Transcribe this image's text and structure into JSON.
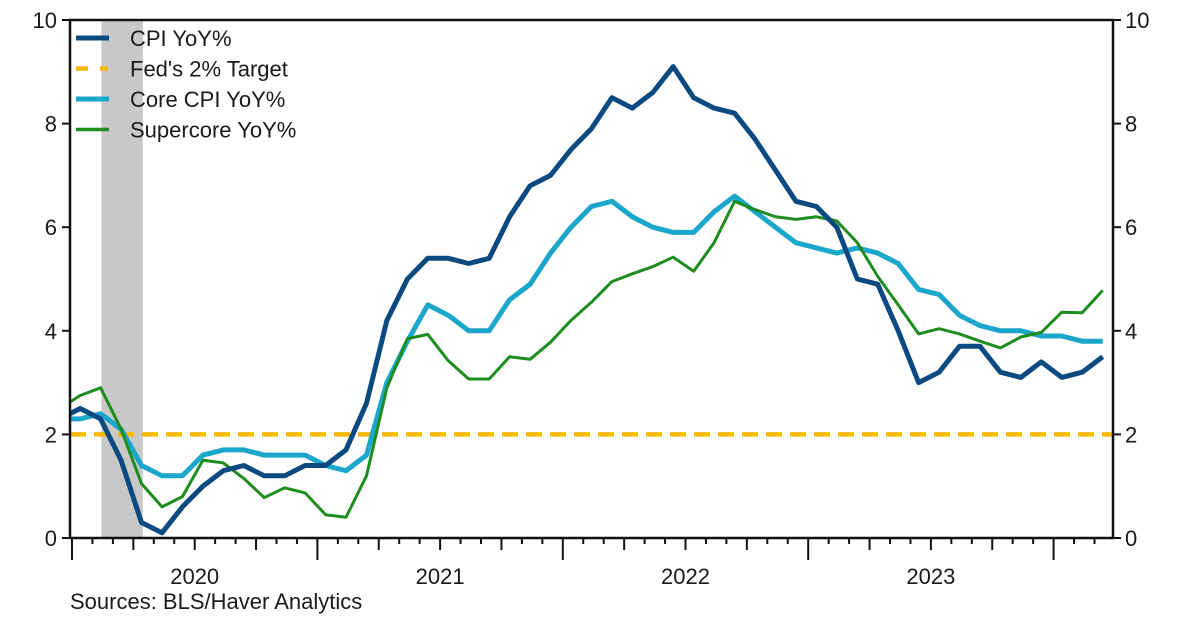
{
  "chart_data": {
    "type": "line",
    "title": "",
    "xlabel": "",
    "ylabel": "",
    "ylim": [
      0,
      10
    ],
    "yticks": [
      0,
      2,
      4,
      6,
      8,
      10
    ],
    "y_axes": "left and right (mirrored)",
    "x_start": "2019-12",
    "x_end": "2024-03",
    "frequency": "monthly",
    "xtick_labels": [
      "2020",
      "2021",
      "2022",
      "2023"
    ],
    "legend_position": "top-left",
    "grid": false,
    "shaded_regions": [
      {
        "name": "Recession",
        "start": "2020-02",
        "end": "2020-04",
        "color": "#c8c8c8"
      }
    ],
    "x": [
      "2019-12",
      "2020-01",
      "2020-02",
      "2020-03",
      "2020-04",
      "2020-05",
      "2020-06",
      "2020-07",
      "2020-08",
      "2020-09",
      "2020-10",
      "2020-11",
      "2020-12",
      "2021-01",
      "2021-02",
      "2021-03",
      "2021-04",
      "2021-05",
      "2021-06",
      "2021-07",
      "2021-08",
      "2021-09",
      "2021-10",
      "2021-11",
      "2021-12",
      "2022-01",
      "2022-02",
      "2022-03",
      "2022-04",
      "2022-05",
      "2022-06",
      "2022-07",
      "2022-08",
      "2022-09",
      "2022-10",
      "2022-11",
      "2022-12",
      "2023-01",
      "2023-02",
      "2023-03",
      "2023-04",
      "2023-05",
      "2023-06",
      "2023-07",
      "2023-08",
      "2023-09",
      "2023-10",
      "2023-11",
      "2023-12",
      "2024-01",
      "2024-02",
      "2024-03"
    ],
    "series": [
      {
        "name": "CPI YoY%",
        "color": "#0b4a80",
        "style": "solid",
        "values": [
          2.3,
          2.5,
          2.3,
          1.5,
          0.3,
          0.1,
          0.6,
          1.0,
          1.3,
          1.4,
          1.2,
          1.2,
          1.4,
          1.4,
          1.7,
          2.6,
          4.2,
          5.0,
          5.4,
          5.4,
          5.3,
          5.4,
          6.2,
          6.8,
          7.0,
          7.5,
          7.9,
          8.5,
          8.3,
          8.6,
          9.1,
          8.5,
          8.3,
          8.2,
          7.7,
          7.1,
          6.5,
          6.4,
          6.0,
          5.0,
          4.9,
          4.0,
          3.0,
          3.2,
          3.7,
          3.7,
          3.2,
          3.1,
          3.4,
          3.1,
          3.2,
          3.5
        ]
      },
      {
        "name": "Fed's 2% Target",
        "color": "#f7b900",
        "style": "dashed",
        "values": [
          2,
          2,
          2,
          2,
          2,
          2,
          2,
          2,
          2,
          2,
          2,
          2,
          2,
          2,
          2,
          2,
          2,
          2,
          2,
          2,
          2,
          2,
          2,
          2,
          2,
          2,
          2,
          2,
          2,
          2,
          2,
          2,
          2,
          2,
          2,
          2,
          2,
          2,
          2,
          2,
          2,
          2,
          2,
          2,
          2,
          2,
          2,
          2,
          2,
          2,
          2,
          2
        ]
      },
      {
        "name": "Core CPI YoY%",
        "color": "#1ba6cc",
        "style": "solid",
        "values": [
          2.3,
          2.3,
          2.4,
          2.1,
          1.4,
          1.2,
          1.2,
          1.6,
          1.7,
          1.7,
          1.6,
          1.6,
          1.6,
          1.4,
          1.3,
          1.6,
          3.0,
          3.8,
          4.5,
          4.3,
          4.0,
          4.0,
          4.6,
          4.9,
          5.5,
          6.0,
          6.4,
          6.5,
          6.2,
          6.0,
          5.9,
          5.9,
          6.3,
          6.6,
          6.3,
          6.0,
          5.7,
          5.6,
          5.5,
          5.6,
          5.5,
          5.3,
          4.8,
          4.7,
          4.3,
          4.1,
          4.0,
          4.0,
          3.9,
          3.9,
          3.8,
          3.8
        ]
      },
      {
        "name": "Supercore YoY%",
        "color": "#1e8c1e",
        "style": "solid",
        "values": [
          2.5,
          2.75,
          2.9,
          2.1,
          1.05,
          0.6,
          0.8,
          1.5,
          1.45,
          1.15,
          0.78,
          0.97,
          0.87,
          0.45,
          0.4,
          1.2,
          2.9,
          3.85,
          3.93,
          3.42,
          3.07,
          3.07,
          3.5,
          3.45,
          3.78,
          4.2,
          4.55,
          4.95,
          5.1,
          5.24,
          5.42,
          5.15,
          5.7,
          6.5,
          6.34,
          6.2,
          6.15,
          6.2,
          6.12,
          5.7,
          5.05,
          4.5,
          3.94,
          4.04,
          3.94,
          3.8,
          3.67,
          3.88,
          3.97,
          4.36,
          4.35,
          4.78
        ]
      }
    ],
    "source": "Sources:   BLS/Haver Analytics"
  }
}
